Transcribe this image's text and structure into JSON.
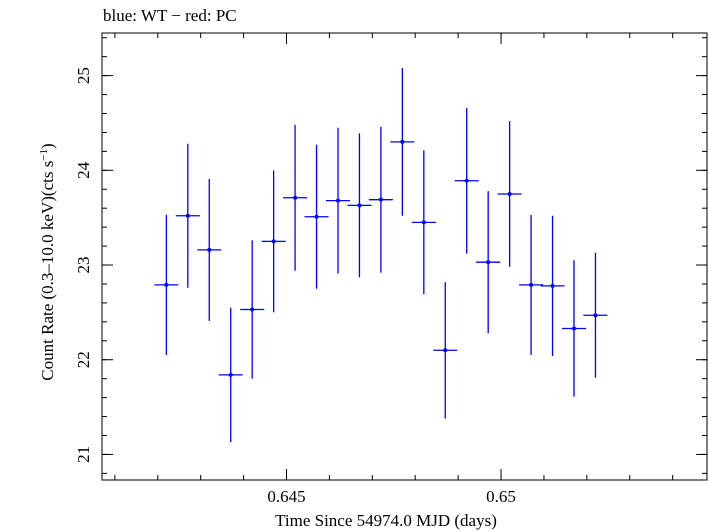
{
  "chart_data": {
    "type": "scatter",
    "title": "blue: WT − red: PC",
    "xlabel": "Time Since 54974.0 MJD (days)",
    "ylabel_main": "Count Rate (0.3–10.0 keV)(cts s",
    "ylabel_sup": "−1",
    "ylabel_close": ")",
    "xlim": [
      0.6407,
      0.6548
    ],
    "ylim": [
      20.73,
      25.45
    ],
    "xticks": [
      {
        "value": 0.645,
        "label": "0.645"
      },
      {
        "value": 0.65,
        "label": "0.65"
      }
    ],
    "yticks": [
      {
        "value": 21,
        "label": "21"
      },
      {
        "value": 22,
        "label": "22"
      },
      {
        "value": 23,
        "label": "23"
      },
      {
        "value": 24,
        "label": "24"
      },
      {
        "value": 25,
        "label": "25"
      }
    ],
    "x_minor_step": 0.001,
    "y_minor_step": 0.2,
    "series": [
      {
        "name": "WT",
        "color": "#0000ff",
        "xerr": 0.00028,
        "points": [
          {
            "x": 0.6422,
            "y": 22.79,
            "yerr": 0.74
          },
          {
            "x": 0.6427,
            "y": 23.52,
            "yerr": 0.76
          },
          {
            "x": 0.6432,
            "y": 23.16,
            "yerr": 0.75
          },
          {
            "x": 0.6437,
            "y": 21.84,
            "yerr": 0.71
          },
          {
            "x": 0.6442,
            "y": 22.53,
            "yerr": 0.73
          },
          {
            "x": 0.6447,
            "y": 23.25,
            "yerr": 0.75
          },
          {
            "x": 0.6452,
            "y": 23.71,
            "yerr": 0.77
          },
          {
            "x": 0.6457,
            "y": 23.51,
            "yerr": 0.76
          },
          {
            "x": 0.6462,
            "y": 23.68,
            "yerr": 0.77
          },
          {
            "x": 0.6467,
            "y": 23.63,
            "yerr": 0.76
          },
          {
            "x": 0.6472,
            "y": 23.69,
            "yerr": 0.77
          },
          {
            "x": 0.6477,
            "y": 24.3,
            "yerr": 0.78
          },
          {
            "x": 0.6482,
            "y": 23.45,
            "yerr": 0.76
          },
          {
            "x": 0.6487,
            "y": 22.1,
            "yerr": 0.72
          },
          {
            "x": 0.6492,
            "y": 23.89,
            "yerr": 0.77
          },
          {
            "x": 0.6497,
            "y": 23.03,
            "yerr": 0.75
          },
          {
            "x": 0.6502,
            "y": 23.75,
            "yerr": 0.77
          },
          {
            "x": 0.6507,
            "y": 22.79,
            "yerr": 0.74
          },
          {
            "x": 0.6512,
            "y": 22.78,
            "yerr": 0.74
          },
          {
            "x": 0.6517,
            "y": 22.33,
            "yerr": 0.72
          },
          {
            "x": 0.6522,
            "y": 22.47,
            "yerr": 0.66
          }
        ]
      }
    ]
  }
}
